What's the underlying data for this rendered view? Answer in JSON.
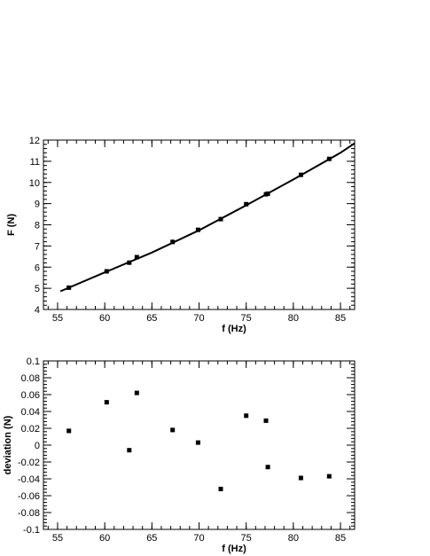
{
  "chart_data": [
    {
      "type": "scatter",
      "xlabel": "f (Hz)",
      "ylabel": "F (N)",
      "xlim": [
        53.5,
        86.5
      ],
      "ylim": [
        4,
        12
      ],
      "x_ticks": [
        55,
        60,
        65,
        70,
        75,
        80,
        85
      ],
      "x_tick_labels": [
        "55",
        "60",
        "65",
        "70",
        "75",
        "80",
        "85"
      ],
      "y_ticks": [
        4,
        5,
        6,
        7,
        8,
        9,
        10,
        11,
        12
      ],
      "y_tick_labels": [
        "4",
        "5",
        "6",
        "7",
        "8",
        "9",
        "10",
        "11",
        "12"
      ],
      "grid": false,
      "series": [
        {
          "kind": "points",
          "x": [
            56.2,
            60.2,
            62.6,
            63.4,
            67.2,
            69.9,
            72.3,
            75.0,
            77.1,
            77.3,
            80.8,
            83.8
          ],
          "y": [
            5.03,
            5.8,
            6.21,
            6.47,
            7.19,
            7.76,
            8.27,
            8.97,
            9.44,
            9.47,
            10.36,
            11.11
          ]
        },
        {
          "kind": "fit-line",
          "x": [
            55.3,
            60.0,
            65.0,
            70.0,
            75.0,
            80.0,
            85.0,
            86.5
          ],
          "y": [
            4.86,
            5.75,
            6.69,
            7.74,
            8.92,
            10.14,
            11.4,
            11.85
          ]
        }
      ]
    },
    {
      "type": "scatter",
      "xlabel": "f (Hz)",
      "ylabel": "deviation (N)",
      "xlim": [
        53.5,
        86.5
      ],
      "ylim": [
        -0.1,
        0.1
      ],
      "x_ticks": [
        55,
        60,
        65,
        70,
        75,
        80,
        85
      ],
      "x_tick_labels": [
        "55",
        "60",
        "65",
        "70",
        "75",
        "80",
        "85"
      ],
      "y_ticks": [
        -0.1,
        -0.08,
        -0.06,
        -0.04,
        -0.02,
        0,
        0.02,
        0.04,
        0.06,
        0.08,
        0.1
      ],
      "y_tick_labels": [
        "-0.1",
        "-0.08",
        "-0.06",
        "-0.04",
        "-0.02",
        "0",
        "0.02",
        "0.04",
        "0.06",
        "0.08",
        "0.1"
      ],
      "grid": false,
      "series": [
        {
          "kind": "points",
          "x": [
            56.2,
            60.2,
            62.6,
            63.4,
            67.2,
            69.9,
            72.3,
            75.0,
            77.1,
            77.3,
            80.8,
            83.8
          ],
          "y": [
            0.017,
            0.051,
            -0.006,
            0.062,
            0.018,
            0.003,
            -0.052,
            0.035,
            0.029,
            -0.026,
            -0.039,
            -0.037
          ]
        }
      ]
    }
  ]
}
